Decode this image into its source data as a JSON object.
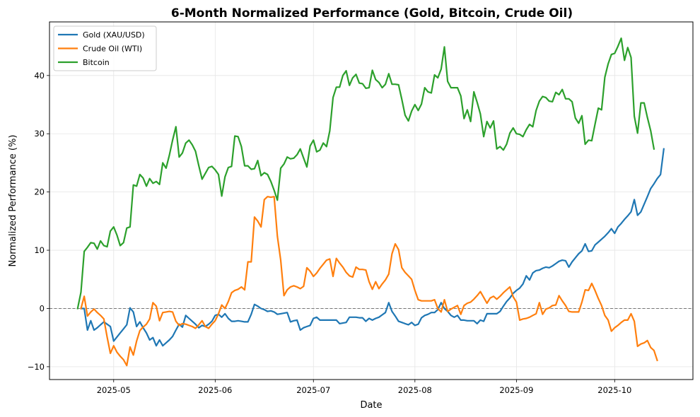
{
  "chart_data": {
    "type": "line",
    "title": "6-Month Normalized Performance (Gold, Bitcoin, Crude Oil)",
    "xlabel": "Date",
    "ylabel": "Normalized Performance (%)",
    "x_start_date": "2025-04-20",
    "x_step_days": 1,
    "xlim_days": [
      -8.6,
      187.9
    ],
    "ylim": [
      -12.2,
      49.2
    ],
    "x_ticks": [
      {
        "label": "2025-05",
        "day": 11
      },
      {
        "label": "2025-06",
        "day": 42
      },
      {
        "label": "2025-07",
        "day": 72
      },
      {
        "label": "2025-08",
        "day": 103
      },
      {
        "label": "2025-09",
        "day": 134
      },
      {
        "label": "2025-10",
        "day": 164
      }
    ],
    "y_ticks": [
      -10,
      0,
      10,
      20,
      30,
      40
    ],
    "grid": true,
    "zero_line": true,
    "legend_position": "top-left",
    "series": [
      {
        "name": "Gold (XAU/USD)",
        "color": "#1f77b4",
        "start_offset_days": 1,
        "values": [
          0,
          0,
          -3.7,
          -2.1,
          -3.7,
          -3.3,
          -2.8,
          -2.3,
          -2.7,
          -3.1,
          -5.6,
          -4.9,
          -4.2,
          -3.5,
          -2.8,
          0.1,
          -0.6,
          -3.1,
          -2.3,
          -3.3,
          -4.2,
          -5.4,
          -5.0,
          -6.4,
          -5.4,
          -6.4,
          -5.9,
          -5.4,
          -4.8,
          -3.7,
          -2.7,
          -3.2,
          -1.2,
          -1.7,
          -2.2,
          -2.7,
          -3.3,
          -2.9,
          -3.1,
          -2.7,
          -2.2,
          -1.2,
          -1.0,
          -1.5,
          -0.9,
          -1.7,
          -2.2,
          -2.2,
          -2.1,
          -2.2,
          -2.3,
          -2.3,
          -1.0,
          0.7,
          0.4,
          0,
          -0.2,
          -0.5,
          -0.4,
          -0.6,
          -1.0,
          -0.9,
          -0.8,
          -0.7,
          -2.3,
          -2.1,
          -2.0,
          -3.7,
          -3.3,
          -3.1,
          -2.9,
          -1.7,
          -1.5,
          -2.0,
          -2.0,
          -2.0,
          -2.0,
          -2.0,
          -2.0,
          -2.6,
          -2.5,
          -2.4,
          -1.5,
          -1.5,
          -1.5,
          -1.6,
          -1.6,
          -2.2,
          -1.7,
          -2.0,
          -1.7,
          -1.5,
          -1.1,
          -0.7,
          1.0,
          -0.5,
          -1.3,
          -2.2,
          -2.4,
          -2.6,
          -2.8,
          -2.4,
          -2.9,
          -2.7,
          -1.6,
          -1.2,
          -1.0,
          -0.7,
          -0.7,
          -0.2,
          1.0,
          0,
          -0.5,
          -1.2,
          -1.5,
          -1.2,
          -2.0,
          -2.0,
          -2.1,
          -2.1,
          -2.1,
          -2.6,
          -2.0,
          -2.2,
          -0.9,
          -0.9,
          -0.9,
          -0.9,
          -0.5,
          0.4,
          1.2,
          1.8,
          2.6,
          3.1,
          3.5,
          4.2,
          5.6,
          4.9,
          6.1,
          6.5,
          6.6,
          6.9,
          7.1,
          7.0,
          7.3,
          7.7,
          8.1,
          8.3,
          8.2,
          7.1,
          8.0,
          8.7,
          9.4,
          9.9,
          11.1,
          9.8,
          9.9,
          10.9,
          11.4,
          11.9,
          12.4,
          13.0,
          13.7,
          12.9,
          14.0,
          14.6,
          15.3,
          15.9,
          16.6,
          18.7,
          16.0,
          16.6,
          17.9,
          19.2,
          20.6,
          21.4,
          22.3,
          23.0,
          27.4
        ]
      },
      {
        "name": "Crude Oil (WTI)",
        "color": "#ff7f0e",
        "start_offset_days": 1,
        "values": [
          0,
          2.1,
          -1.3,
          -0.6,
          -0.1,
          -0.7,
          -1.2,
          -1.8,
          -4.9,
          -7.7,
          -6.4,
          -7.5,
          -8.2,
          -8.8,
          -9.8,
          -6.6,
          -8.0,
          -5.6,
          -3.8,
          -3.2,
          -2.7,
          -1.8,
          1.0,
          0.4,
          -2.1,
          -0.7,
          -0.6,
          -0.5,
          -0.6,
          -2.2,
          -2.9,
          -2.6,
          -2.7,
          -2.9,
          -3.1,
          -3.4,
          -2.8,
          -2.1,
          -3.1,
          -3.4,
          -2.7,
          -2.1,
          -0.9,
          0.6,
          0,
          1.2,
          2.7,
          3.1,
          3.3,
          3.7,
          3.2,
          8.0,
          8.0,
          15.7,
          15.0,
          14.0,
          18.7,
          19.2,
          19.1,
          19.2,
          12.4,
          8.3,
          2.2,
          3.2,
          3.7,
          3.9,
          3.7,
          3.4,
          3.8,
          7.0,
          6.4,
          5.5,
          6.1,
          6.9,
          7.6,
          8.3,
          8.5,
          5.5,
          8.6,
          7.8,
          7.1,
          6.2,
          5.6,
          5.4,
          7.1,
          6.7,
          6.7,
          6.6,
          4.6,
          3.3,
          4.6,
          3.4,
          4.2,
          4.9,
          5.9,
          9.4,
          11.1,
          10.1,
          7.0,
          6.2,
          5.6,
          5.0,
          3.1,
          1.5,
          1.3,
          1.3,
          1.3,
          1.3,
          1.5,
          0,
          -0.6,
          1.5,
          -0.5,
          -0.1,
          0.2,
          0.5,
          -1.0,
          0.5,
          0.9,
          1.1,
          1.6,
          2.2,
          2.9,
          1.9,
          0.9,
          1.8,
          2.1,
          1.6,
          2.1,
          2.7,
          3.2,
          3.7,
          2.0,
          1.1,
          -2.0,
          -1.8,
          -1.7,
          -1.5,
          -1.2,
          -0.9,
          1.0,
          -1.0,
          -0.1,
          0.1,
          0.5,
          0.6,
          2.2,
          1.3,
          0.5,
          -0.5,
          -0.6,
          -0.6,
          -0.6,
          1.1,
          3.2,
          3.1,
          4.3,
          3.1,
          1.7,
          0.5,
          -1.2,
          -2.0,
          -3.9,
          -3.3,
          -2.9,
          -2.4,
          -2.0,
          -2.0,
          -0.9,
          -2.2,
          -6.5,
          -6.1,
          -5.9,
          -5.5,
          -6.7,
          -7.2,
          -8.9
        ]
      },
      {
        "name": "Bitcoin",
        "color": "#2ca02c",
        "start_offset_days": 0,
        "values": [
          0,
          2.8,
          9.8,
          10.5,
          11.3,
          11.2,
          10.2,
          11.6,
          10.8,
          10.6,
          13.3,
          14.0,
          12.6,
          10.8,
          11.3,
          13.8,
          14.0,
          21.2,
          21.0,
          23.0,
          22.4,
          21.0,
          22.3,
          21.5,
          21.8,
          21.3,
          25.0,
          24.1,
          26.3,
          28.9,
          31.2,
          26.0,
          26.7,
          28.4,
          28.9,
          28.1,
          27.0,
          24.5,
          22.2,
          23.2,
          24.2,
          24.4,
          23.8,
          23.0,
          19.3,
          22.6,
          24.2,
          24.4,
          29.6,
          29.5,
          27.8,
          24.5,
          24.5,
          23.9,
          24.0,
          25.4,
          22.8,
          23.3,
          23.0,
          21.8,
          20.3,
          18.6,
          24.1,
          24.8,
          26.0,
          25.7,
          25.8,
          26.4,
          27.4,
          25.8,
          24.3,
          27.9,
          28.9,
          26.9,
          27.2,
          28.4,
          27.8,
          30.5,
          36.2,
          38.0,
          38.0,
          40.0,
          40.8,
          38.3,
          39.6,
          40.2,
          38.7,
          38.6,
          37.8,
          37.9,
          40.9,
          39.3,
          38.8,
          37.9,
          38.5,
          40.3,
          38.5,
          38.5,
          38.4,
          35.9,
          33.2,
          32.2,
          33.9,
          35.0,
          34.0,
          35.1,
          37.9,
          37.2,
          37.0,
          40.1,
          39.6,
          41.1,
          44.9,
          39.0,
          37.9,
          37.9,
          37.9,
          36.5,
          32.6,
          34.1,
          32.1,
          37.2,
          35.4,
          33.4,
          29.5,
          32.1,
          31.0,
          32.2,
          27.4,
          27.8,
          27.2,
          28.2,
          30.1,
          31.0,
          30.0,
          29.9,
          29.5,
          30.7,
          31.6,
          31.2,
          34.0,
          35.6,
          36.4,
          36.2,
          35.6,
          35.5,
          37.1,
          36.7,
          37.6,
          36.0,
          36.0,
          35.5,
          32.7,
          31.8,
          33.1,
          28.2,
          28.9,
          28.8,
          31.6,
          34.4,
          34.1,
          39.7,
          42.0,
          43.6,
          43.8,
          45.0,
          46.4,
          42.6,
          44.8,
          43.1,
          33.0,
          30.1,
          35.3,
          35.3,
          32.8,
          30.5,
          27.4
        ]
      }
    ]
  }
}
